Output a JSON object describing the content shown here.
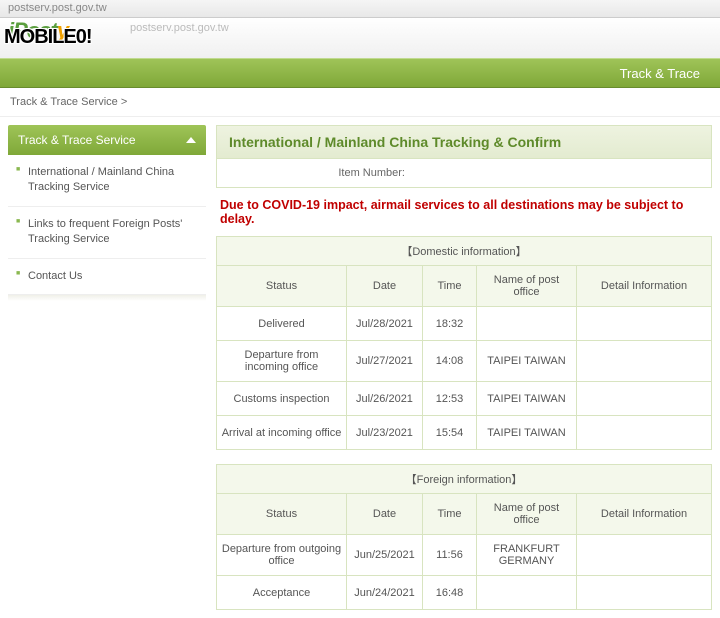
{
  "topbar": {
    "url": "postserv.post.gov.tw"
  },
  "logo": {
    "text_i": "i",
    "text_post": "Post",
    "text_y": "y",
    "overlay": "MOBILE0!"
  },
  "greenbar": {
    "title": "Track & Trace"
  },
  "breadcrumb": {
    "text": "Track & Trace Service >"
  },
  "sidebar": {
    "title": "Track & Trace Service",
    "items": [
      {
        "label": "International / Mainland China Tracking Service"
      },
      {
        "label": "Links to frequent Foreign Posts' Tracking Service"
      },
      {
        "label": "Contact Us"
      }
    ]
  },
  "main": {
    "title": "International / Mainland China Tracking & Confirm",
    "item_number_label": "Item Number:",
    "covid_notice": "Due to COVID-19 impact, airmail services to all destinations may be subject to delay.",
    "domestic": {
      "header": "【Domestic information】",
      "columns": {
        "status": "Status",
        "date": "Date",
        "time": "Time",
        "office": "Name of post office",
        "detail": "Detail Information"
      },
      "rows": [
        {
          "status": "Delivered",
          "date": "Jul/28/2021",
          "time": "18:32",
          "office": "",
          "detail": ""
        },
        {
          "status": "Departure from incoming office",
          "date": "Jul/27/2021",
          "time": "14:08",
          "office": "TAIPEI TAIWAN",
          "detail": ""
        },
        {
          "status": "Customs inspection",
          "date": "Jul/26/2021",
          "time": "12:53",
          "office": "TAIPEI TAIWAN",
          "detail": ""
        },
        {
          "status": "Arrival at incoming office",
          "date": "Jul/23/2021",
          "time": "15:54",
          "office": "TAIPEI TAIWAN",
          "detail": ""
        }
      ]
    },
    "foreign": {
      "header": "【Foreign information】",
      "columns": {
        "status": "Status",
        "date": "Date",
        "time": "Time",
        "office": "Name of post office",
        "detail": "Detail Information"
      },
      "rows": [
        {
          "status": "Departure from outgoing office",
          "date": "Jun/25/2021",
          "time": "11:56",
          "office": "FRANKFURT GERMANY",
          "detail": ""
        },
        {
          "status": "Acceptance",
          "date": "Jun/24/2021",
          "time": "16:48",
          "office": "",
          "detail": ""
        }
      ]
    }
  }
}
